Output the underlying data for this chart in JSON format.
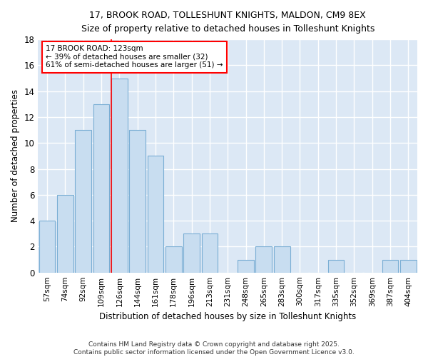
{
  "title1": "17, BROOK ROAD, TOLLESHUNT KNIGHTS, MALDON, CM9 8EX",
  "title2": "Size of property relative to detached houses in Tolleshunt Knights",
  "xlabel": "Distribution of detached houses by size in Tolleshunt Knights",
  "ylabel": "Number of detached properties",
  "categories": [
    "57sqm",
    "74sqm",
    "92sqm",
    "109sqm",
    "126sqm",
    "144sqm",
    "161sqm",
    "178sqm",
    "196sqm",
    "213sqm",
    "231sqm",
    "248sqm",
    "265sqm",
    "283sqm",
    "300sqm",
    "317sqm",
    "335sqm",
    "352sqm",
    "369sqm",
    "387sqm",
    "404sqm"
  ],
  "values": [
    4,
    6,
    11,
    13,
    15,
    11,
    9,
    2,
    3,
    3,
    0,
    1,
    2,
    2,
    0,
    0,
    1,
    0,
    0,
    1,
    1
  ],
  "bar_color": "#c8ddf0",
  "bar_edge_color": "#7aaed4",
  "red_line_x": 4,
  "annotation_line1": "17 BROOK ROAD: 123sqm",
  "annotation_line2": "← 39% of detached houses are smaller (32)",
  "annotation_line3": "61% of semi-detached houses are larger (51) →",
  "ylim": [
    0,
    18
  ],
  "yticks": [
    0,
    2,
    4,
    6,
    8,
    10,
    12,
    14,
    16,
    18
  ],
  "fig_bg_color": "#ffffff",
  "ax_bg_color": "#dce8f5",
  "grid_color": "#ffffff",
  "footer1": "Contains HM Land Registry data © Crown copyright and database right 2025.",
  "footer2": "Contains public sector information licensed under the Open Government Licence v3.0."
}
